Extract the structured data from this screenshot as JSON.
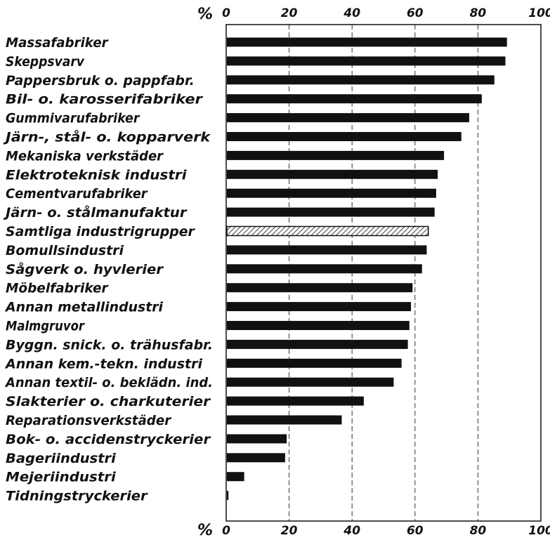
{
  "chart_data": {
    "type": "bar",
    "orientation": "horizontal",
    "unit_label": "%",
    "xlim": [
      0,
      100
    ],
    "ticks": [
      "0",
      "20",
      "40",
      "60",
      "80",
      "100"
    ],
    "grid": true,
    "categories": [
      "Massafabriker",
      "Skeppsvarv",
      "Pappersbruk o. pappfabr.",
      "Bil- o. karosserifabriker",
      "Gummivarufabriker",
      "Järn-, stål- o. kopparverk",
      "Mekaniska verkstäder",
      "Elektroteknisk industri",
      "Cementvarufabriker",
      "Järn- o. stålmanufaktur",
      "Samtliga industrigrupper",
      "Bomullsindustri",
      "Sågverk o. hyvlerier",
      "Möbelfabriker",
      "Annan metallindustri",
      "Malmgruvor",
      "Byggn. snick. o. trähusfabr.",
      "Annan kem.-tekn. industri",
      "Annan textil- o. beklädn. ind.",
      "Slakterier o. charkuterier",
      "Reparationsverkstäder",
      "Bok- o. accidenstryckerier",
      "Bageriindustri",
      "Mejeriindustri",
      "Tidningstryckerier"
    ],
    "values": [
      89,
      88.5,
      85,
      81,
      77,
      74.5,
      69,
      67,
      66.5,
      66,
      64,
      63.5,
      62,
      59,
      58.5,
      58,
      57.5,
      55.5,
      53,
      43.5,
      36.5,
      19,
      18.5,
      5.5,
      0.5
    ],
    "highlight_index": 10,
    "colors": {
      "bar": "#111111",
      "highlight_fill": "#ffffff",
      "highlight_hatch": "#111111",
      "grid": "#333333"
    }
  }
}
